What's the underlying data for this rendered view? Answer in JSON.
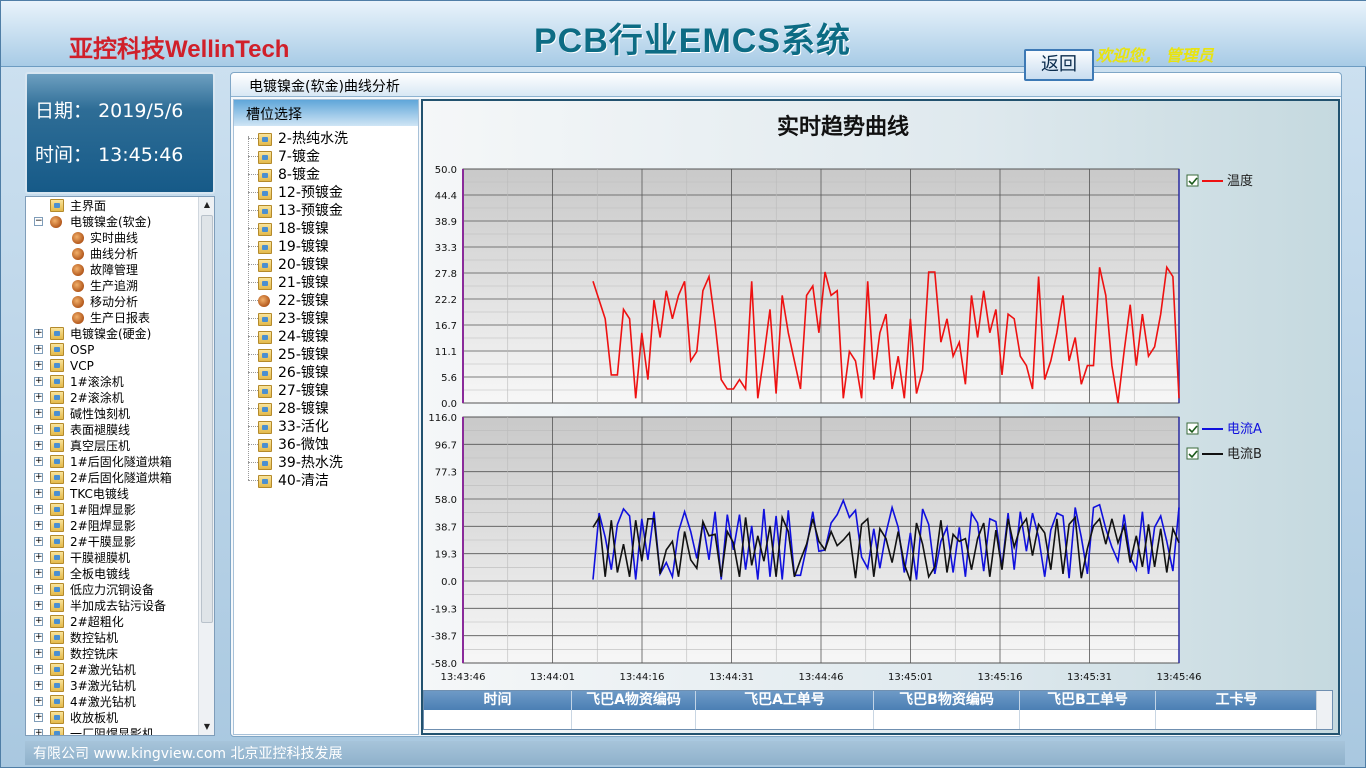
{
  "header": {
    "logo_cn": "亚控科技",
    "logo_en": "WellinTech",
    "system_title": "PCB行业EMCS系统",
    "welcome": "欢迎您， 管理员"
  },
  "datetime": {
    "date_label": "日期：",
    "date_value": "2019/5/6",
    "time_label": "时间：",
    "time_value": "13:45:46"
  },
  "nav": {
    "items": [
      {
        "label": "主界面",
        "level": 1,
        "expander": "",
        "icon": "folder-icon"
      },
      {
        "label": "电镀镍金(软金)",
        "level": 1,
        "expander": "−",
        "icon": "bullet-icon"
      },
      {
        "label": "实时曲线",
        "level": 2,
        "expander": "",
        "icon": "bullet-icon"
      },
      {
        "label": "曲线分析",
        "level": 2,
        "expander": "",
        "icon": "bullet-icon"
      },
      {
        "label": "故障管理",
        "level": 2,
        "expander": "",
        "icon": "bullet-icon"
      },
      {
        "label": "生产追溯",
        "level": 2,
        "expander": "",
        "icon": "bullet-icon"
      },
      {
        "label": "移动分析",
        "level": 2,
        "expander": "",
        "icon": "bullet-icon"
      },
      {
        "label": "生产日报表",
        "level": 2,
        "expander": "",
        "icon": "bullet-icon"
      },
      {
        "label": "电镀镍金(硬金)",
        "level": 1,
        "expander": "+",
        "icon": "folder-icon"
      },
      {
        "label": "OSP",
        "level": 1,
        "expander": "+",
        "icon": "folder-icon"
      },
      {
        "label": "VCP",
        "level": 1,
        "expander": "+",
        "icon": "folder-icon"
      },
      {
        "label": "1#滚涂机",
        "level": 1,
        "expander": "+",
        "icon": "folder-icon"
      },
      {
        "label": "2#滚涂机",
        "level": 1,
        "expander": "+",
        "icon": "folder-icon"
      },
      {
        "label": "碱性蚀刻机",
        "level": 1,
        "expander": "+",
        "icon": "folder-icon"
      },
      {
        "label": "表面褪膜线",
        "level": 1,
        "expander": "+",
        "icon": "folder-icon"
      },
      {
        "label": "真空层压机",
        "level": 1,
        "expander": "+",
        "icon": "folder-icon"
      },
      {
        "label": "1#后固化隧道烘箱",
        "level": 1,
        "expander": "+",
        "icon": "folder-icon"
      },
      {
        "label": "2#后固化隧道烘箱",
        "level": 1,
        "expander": "+",
        "icon": "folder-icon"
      },
      {
        "label": "TKC电镀线",
        "level": 1,
        "expander": "+",
        "icon": "folder-icon"
      },
      {
        "label": "1#阻焊显影",
        "level": 1,
        "expander": "+",
        "icon": "folder-icon"
      },
      {
        "label": "2#阻焊显影",
        "level": 1,
        "expander": "+",
        "icon": "folder-icon"
      },
      {
        "label": "2#干膜显影",
        "level": 1,
        "expander": "+",
        "icon": "folder-icon"
      },
      {
        "label": "干膜褪膜机",
        "level": 1,
        "expander": "+",
        "icon": "folder-icon"
      },
      {
        "label": "全板电镀线",
        "level": 1,
        "expander": "+",
        "icon": "folder-icon"
      },
      {
        "label": "低应力沉铜设备",
        "level": 1,
        "expander": "+",
        "icon": "folder-icon"
      },
      {
        "label": "半加成去钻污设备",
        "level": 1,
        "expander": "+",
        "icon": "folder-icon"
      },
      {
        "label": "2#超粗化",
        "level": 1,
        "expander": "+",
        "icon": "folder-icon"
      },
      {
        "label": "数控钻机",
        "level": 1,
        "expander": "+",
        "icon": "folder-icon"
      },
      {
        "label": "数控铣床",
        "level": 1,
        "expander": "+",
        "icon": "folder-icon"
      },
      {
        "label": "2#激光钻机",
        "level": 1,
        "expander": "+",
        "icon": "folder-icon"
      },
      {
        "label": "3#激光钻机",
        "level": 1,
        "expander": "+",
        "icon": "folder-icon"
      },
      {
        "label": "4#激光钻机",
        "level": 1,
        "expander": "+",
        "icon": "folder-icon"
      },
      {
        "label": "收放板机",
        "level": 1,
        "expander": "+",
        "icon": "folder-icon"
      },
      {
        "label": "一厂阻焊显影机",
        "level": 1,
        "expander": "+",
        "icon": "folder-icon"
      }
    ]
  },
  "footer": {
    "text": "有限公司 www.kingview.com 北京亚控科技发展"
  },
  "main": {
    "title": "电镀镍金(软金)曲线分析",
    "slot_header": "槽位选择",
    "slots": [
      "2-热纯水洗",
      "7-镀金",
      "8-镀金",
      "12-预镀金",
      "13-预镀金",
      "18-镀镍",
      "19-镀镍",
      "20-镀镍",
      "21-镀镍",
      "22-镀镍",
      "23-镀镍",
      "24-镀镍",
      "25-镀镍",
      "26-镀镍",
      "27-镀镍",
      "28-镀镍",
      "33-活化",
      "36-微蚀",
      "39-热水洗",
      "40-清洁"
    ],
    "selected_slot_index": 9,
    "chart_title": "实时趋势曲线",
    "return_label": "返回"
  },
  "chart_data": [
    {
      "type": "line",
      "title": "实时趋势曲线",
      "x_labels": [
        "13:43:46",
        "13:44:01",
        "13:44:16",
        "13:44:31",
        "13:44:46",
        "13:45:01",
        "13:45:16",
        "13:45:31",
        "13:45:46"
      ],
      "ylim": [
        0.0,
        50.0
      ],
      "y_ticks": [
        "0.0",
        "5.6",
        "11.1",
        "16.7",
        "22.2",
        "27.8",
        "33.3",
        "38.9",
        "44.4",
        "50.0"
      ],
      "legend_position": "right",
      "series": [
        {
          "name": "温度",
          "color": "#ee1111",
          "checked": true,
          "values": [
            26,
            22,
            18,
            6,
            6,
            20,
            18,
            1,
            15,
            5,
            22,
            14,
            24,
            18,
            23,
            26,
            9,
            11,
            24,
            27,
            17,
            5,
            3,
            3,
            5,
            3,
            26,
            1,
            10,
            20,
            2,
            23,
            15,
            9,
            3,
            23,
            25,
            15,
            28,
            23,
            24,
            1,
            11,
            9,
            1,
            26,
            5,
            15,
            19,
            3,
            10,
            1,
            18,
            2,
            7,
            28,
            28,
            13,
            18,
            10,
            13,
            4,
            23,
            14,
            24,
            15,
            20,
            6,
            19,
            18,
            10,
            8,
            3,
            27,
            5,
            9,
            15,
            23,
            9,
            14,
            4,
            8,
            8,
            29,
            23,
            8,
            0,
            11,
            21,
            8,
            19,
            10,
            12,
            19,
            29,
            27,
            1
          ]
        }
      ]
    },
    {
      "type": "line",
      "x_labels": [
        "13:43:46",
        "13:44:01",
        "13:44:16",
        "13:44:31",
        "13:44:46",
        "13:45:01",
        "13:45:16",
        "13:45:31",
        "13:45:46"
      ],
      "ylim": [
        -58.0,
        116.0
      ],
      "y_ticks": [
        "-58.0",
        "-38.7",
        "-19.3",
        "0.0",
        "19.3",
        "38.7",
        "58.0",
        "77.3",
        "96.7",
        "116.0"
      ],
      "legend_position": "right",
      "series": [
        {
          "name": "电流A",
          "color": "#1010dd",
          "checked": true,
          "values": [
            1,
            48,
            31,
            8,
            40,
            51,
            46,
            1,
            44,
            15,
            49,
            5,
            13,
            3,
            35,
            49,
            35,
            16,
            41,
            15,
            49,
            1,
            47,
            22,
            47,
            8,
            39,
            1,
            51,
            3,
            46,
            1,
            50,
            4,
            4,
            24,
            49,
            21,
            22,
            41,
            47,
            57,
            45,
            50,
            17,
            9,
            37,
            9,
            34,
            52,
            38,
            6,
            34,
            1,
            51,
            40,
            5,
            28,
            38,
            6,
            38,
            3,
            48,
            41,
            7,
            44,
            42,
            10,
            48,
            8,
            49,
            21,
            48,
            31,
            3,
            36,
            48,
            46,
            2,
            52,
            31,
            5,
            52,
            54,
            37,
            24,
            14,
            47,
            17,
            8,
            49,
            5,
            38,
            46,
            28,
            7,
            52
          ]
        },
        {
          "name": "电流B",
          "color": "#111111",
          "checked": true,
          "values": [
            38,
            45,
            3,
            43,
            6,
            26,
            3,
            43,
            14,
            44,
            44,
            5,
            22,
            28,
            3,
            35,
            15,
            9,
            42,
            32,
            33,
            3,
            35,
            27,
            3,
            45,
            11,
            32,
            14,
            39,
            3,
            45,
            35,
            3,
            15,
            26,
            44,
            28,
            22,
            35,
            25,
            29,
            34,
            2,
            40,
            44,
            3,
            37,
            30,
            13,
            35,
            12,
            0,
            41,
            26,
            3,
            10,
            43,
            6,
            33,
            28,
            30,
            8,
            30,
            41,
            3,
            36,
            8,
            44,
            24,
            38,
            44,
            18,
            40,
            34,
            8,
            44,
            5,
            40,
            45,
            2,
            23,
            39,
            44,
            26,
            44,
            27,
            39,
            13,
            32,
            10,
            40,
            10,
            37,
            6,
            37,
            27
          ]
        }
      ]
    }
  ],
  "table": {
    "headers": [
      "时间",
      "飞巴A物资编码",
      "飞巴A工单号",
      "飞巴B物资编码",
      "飞巴B工单号",
      "工卡号"
    ]
  }
}
